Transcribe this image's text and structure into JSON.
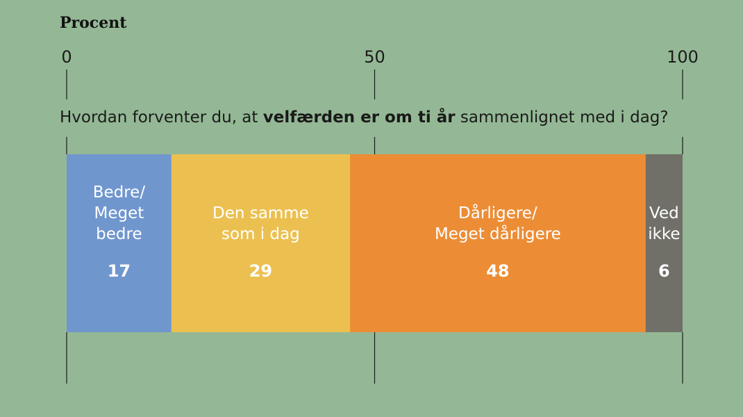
{
  "chart_data": {
    "type": "bar",
    "orientation": "horizontal-stacked",
    "unit_label": "Procent",
    "x_ticks": [
      "0",
      "50",
      "100"
    ],
    "xlim": [
      0,
      100
    ],
    "question": {
      "prefix": "Hvordan forventer du, at ",
      "emphasis": "velfærden er om ti år",
      "suffix": " sammenlignet med i dag?"
    },
    "segments": [
      {
        "label": [
          "Bedre/",
          "Meget",
          "bedre"
        ],
        "value": 17,
        "value_label": "17",
        "color": "#7096ce"
      },
      {
        "label": [
          "Den samme",
          "som i dag"
        ],
        "value": 29,
        "value_label": "29",
        "color": "#ecc050"
      },
      {
        "label": [
          "Dårligere/",
          "Meget dårligere"
        ],
        "value": 48,
        "value_label": "48",
        "color": "#ec8d36"
      },
      {
        "label": [
          "Ved",
          "ikke"
        ],
        "value": 6,
        "value_label": "6",
        "color": "#706f68"
      }
    ],
    "grid": false,
    "background": "#94b895"
  }
}
